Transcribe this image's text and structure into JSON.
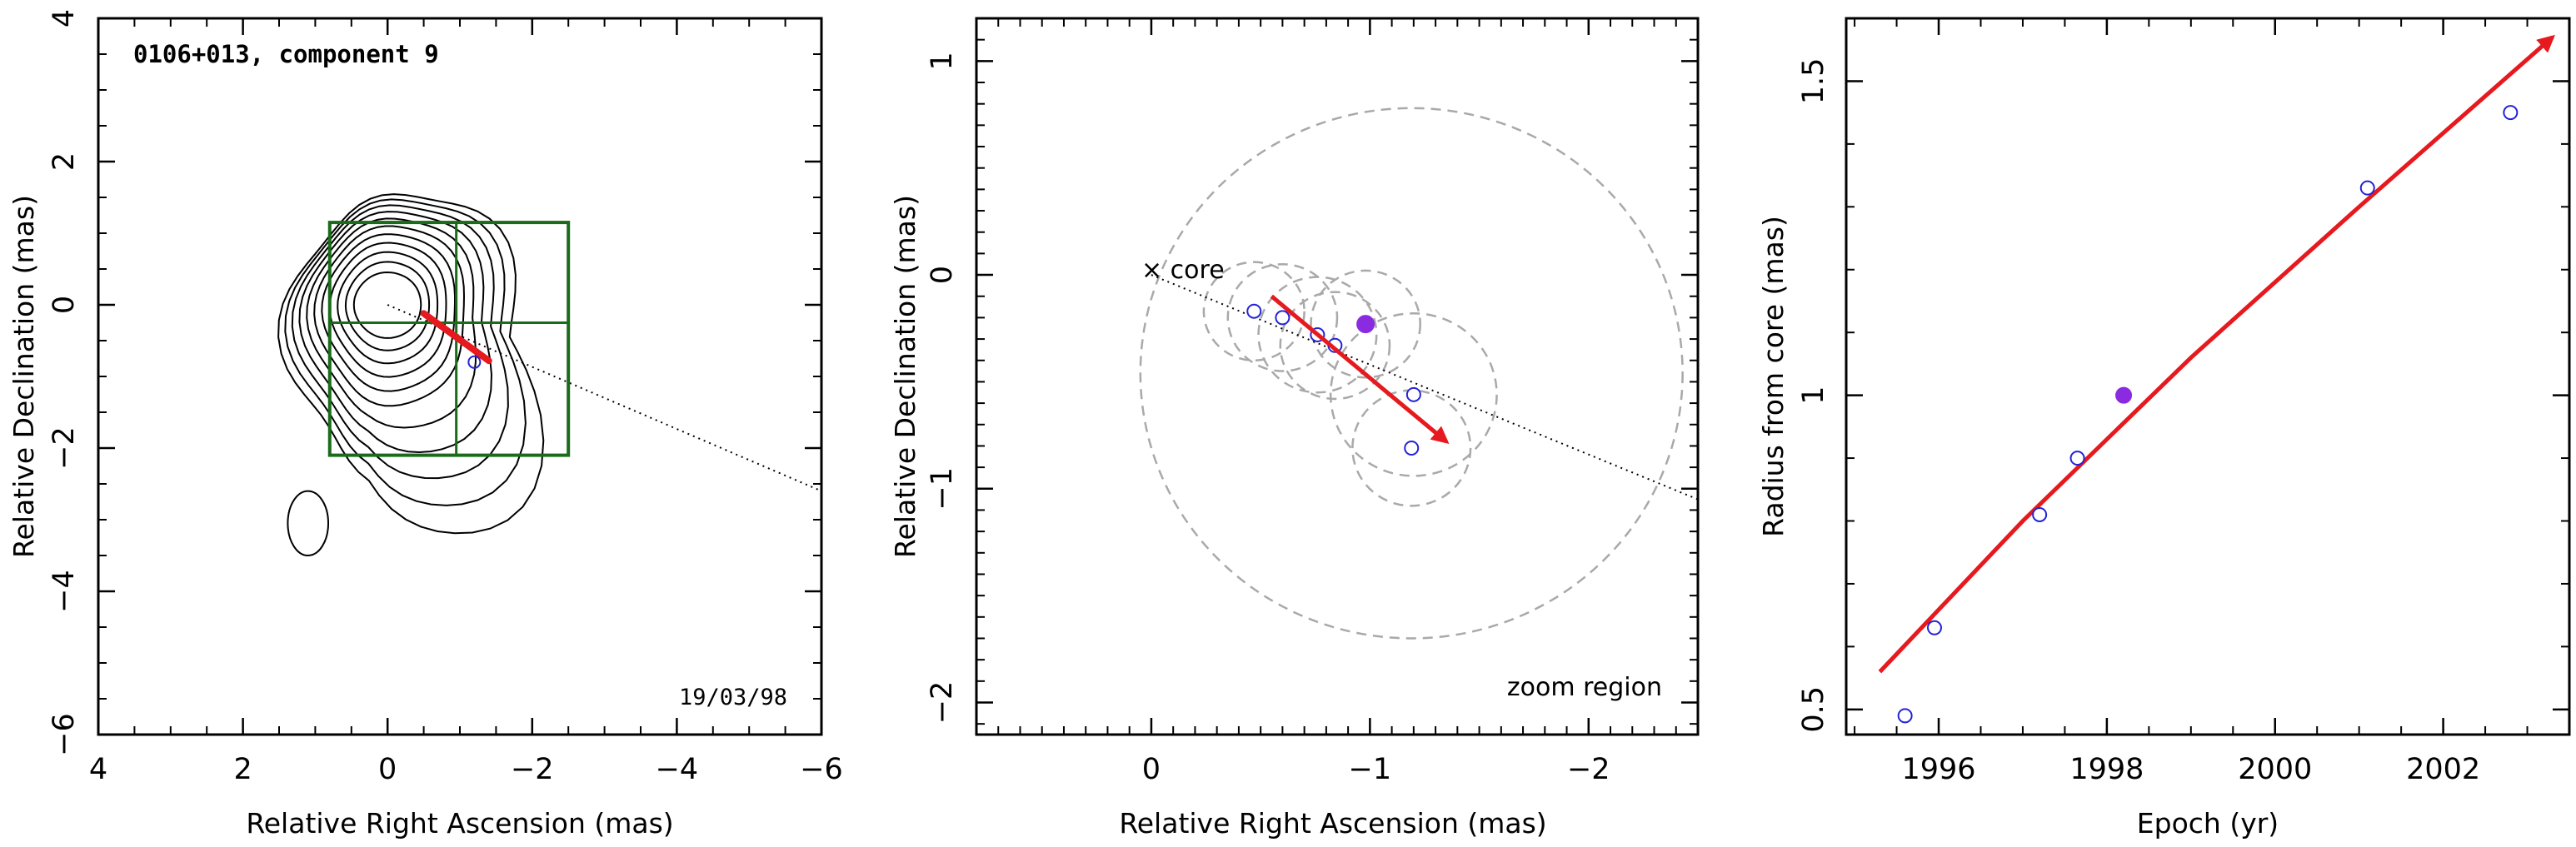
{
  "colors": {
    "contour": "#000000",
    "box": "#1a6b1a",
    "motion_arrow": "#e6191e",
    "trail_point": "#2323d6",
    "current_point": "#8a2be2",
    "zoom_circle": "#a9a9a9",
    "ridge": "#000000"
  },
  "chart_data": [
    {
      "type": "contour",
      "title": "0106+013, component 9",
      "date_label": "19/03/98",
      "xlabel": "Relative Right Ascension (mas)",
      "ylabel": "Relative Declination (mas)",
      "xlim": [
        4,
        -6
      ],
      "ylim": [
        -6,
        4
      ],
      "xticks": [
        4,
        2,
        0,
        -2,
        -4,
        -6
      ],
      "yticks": [
        -6,
        -4,
        -2,
        0,
        2,
        4
      ],
      "xtick_labels": [
        "4",
        "2",
        "0",
        "−2",
        "−4",
        "−6"
      ],
      "ytick_labels": [
        "−6",
        "−4",
        "−2",
        "0",
        "2",
        "4"
      ],
      "contour_levels": 11,
      "core": [
        0.0,
        0.0
      ],
      "component_point": [
        -1.2,
        -0.8
      ],
      "grid_box": {
        "x": [
          0.8,
          -0.95,
          -2.5
        ],
        "y": [
          1.15,
          -0.25,
          -2.1
        ]
      },
      "motion_arrow": {
        "from": [
          -0.5,
          -0.12
        ],
        "to": [
          -1.4,
          -0.78
        ]
      },
      "ridge_line": {
        "from": [
          0,
          0
        ],
        "to": [
          -6,
          -2.6
        ]
      }
    },
    {
      "type": "scatter",
      "xlabel": "Relative Right Ascension (mas)",
      "ylabel": "Relative Declination (mas)",
      "xlim": [
        0.8,
        -2.5
      ],
      "ylim": [
        -2.15,
        1.2
      ],
      "xticks": [
        0,
        -1,
        -2
      ],
      "yticks": [
        -2,
        -1,
        0,
        1
      ],
      "xtick_labels": [
        "0",
        "−1",
        "−2"
      ],
      "ytick_labels": [
        "−2",
        "−1",
        "0",
        "1"
      ],
      "core_label": "× core",
      "zoom_label": "zoom region",
      "trail_points": [
        {
          "x": -0.47,
          "y": -0.17
        },
        {
          "x": -0.6,
          "y": -0.2
        },
        {
          "x": -0.76,
          "y": -0.28
        },
        {
          "x": -0.84,
          "y": -0.33
        },
        {
          "x": -1.2,
          "y": -0.56
        },
        {
          "x": -1.19,
          "y": -0.81
        }
      ],
      "current_point": {
        "x": -0.98,
        "y": -0.23
      },
      "component_circles": [
        {
          "x": -0.47,
          "y": -0.17,
          "r": 0.23
        },
        {
          "x": -0.6,
          "y": -0.2,
          "r": 0.25
        },
        {
          "x": -0.76,
          "y": -0.28,
          "r": 0.27
        },
        {
          "x": -0.84,
          "y": -0.33,
          "r": 0.25
        },
        {
          "x": -0.98,
          "y": -0.23,
          "r": 0.25
        },
        {
          "x": -1.2,
          "y": -0.56,
          "r": 0.38
        },
        {
          "x": -1.19,
          "y": -0.81,
          "r": 0.27
        }
      ],
      "zoom_region": {
        "x": -1.19,
        "y": -0.46,
        "r": 1.24
      },
      "motion_arrow": {
        "from": [
          -0.55,
          -0.1
        ],
        "to": [
          -1.35,
          -0.78
        ]
      },
      "ridge_line": {
        "from": [
          0,
          0
        ],
        "to": [
          -2.5,
          -1.05
        ]
      }
    },
    {
      "type": "scatter",
      "xlabel": "Epoch (yr)",
      "ylabel": "Radius from core (mas)",
      "xlim": [
        1994.9,
        2003.5
      ],
      "ylim": [
        0.46,
        1.6
      ],
      "xticks": [
        1996,
        1998,
        2000,
        2002
      ],
      "yticks": [
        0.5,
        1,
        1.5
      ],
      "xtick_labels": [
        "1996",
        "1998",
        "2000",
        "2002"
      ],
      "ytick_labels": [
        "0.5",
        "1",
        "1.5"
      ],
      "points": [
        {
          "x": 1995.6,
          "y": 0.49
        },
        {
          "x": 1995.95,
          "y": 0.63
        },
        {
          "x": 1997.2,
          "y": 0.81
        },
        {
          "x": 1997.65,
          "y": 0.9
        },
        {
          "x": 2001.1,
          "y": 1.33
        },
        {
          "x": 2002.8,
          "y": 1.45
        }
      ],
      "current_point": {
        "x": 1998.2,
        "y": 1.0
      },
      "fit_curve": [
        {
          "x": 1995.3,
          "y": 0.56
        },
        {
          "x": 1997.0,
          "y": 0.8
        },
        {
          "x": 1999.0,
          "y": 1.06
        },
        {
          "x": 2001.0,
          "y": 1.3
        },
        {
          "x": 2003.3,
          "y": 1.57
        }
      ]
    }
  ]
}
